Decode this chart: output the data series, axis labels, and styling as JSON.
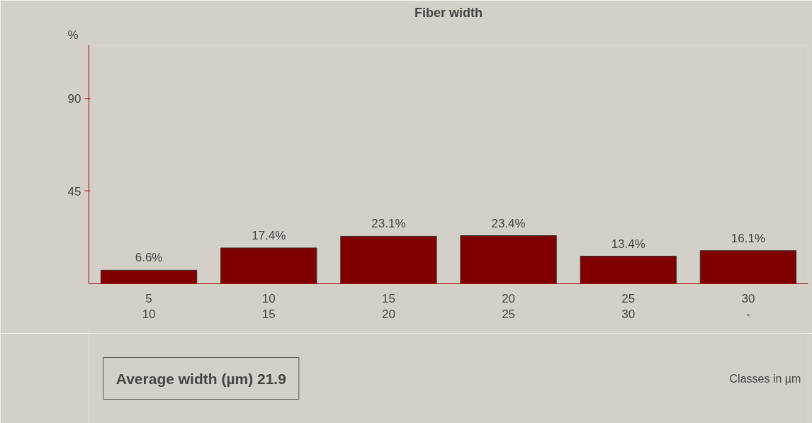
{
  "chart_data": {
    "type": "bar",
    "title": "Fiber width",
    "ylabel": "%",
    "categories": [
      "5\n10",
      "10\n15",
      "15\n20",
      "20\n25",
      "25\n30",
      "30\n-"
    ],
    "values": [
      6.6,
      17.4,
      23.1,
      23.4,
      13.4,
      16.1
    ],
    "value_labels": [
      "6.6%",
      "17.4%",
      "23.1%",
      "23.4%",
      "13.4%",
      "16.1%"
    ],
    "color": "#800000",
    "ylim": [
      0,
      116
    ],
    "yticks": [
      45,
      90
    ],
    "grid": false,
    "annotations": [
      "Average width (µm) 21.9",
      "Classes in µm"
    ]
  }
}
